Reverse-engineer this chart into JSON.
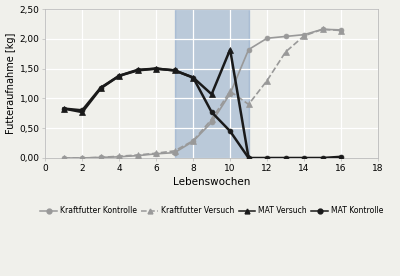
{
  "xlabel": "Lebenswochen",
  "ylabel": "Futteraufnahme [kg]",
  "ylim": [
    0.0,
    2.5
  ],
  "xlim": [
    0,
    18
  ],
  "yticks": [
    0.0,
    0.5,
    1.0,
    1.5,
    2.0,
    2.5
  ],
  "xticks": [
    0,
    2,
    4,
    6,
    8,
    10,
    12,
    14,
    16,
    18
  ],
  "ytick_labels": [
    "0,00",
    "0,50",
    "1,00",
    "1,50",
    "2,00",
    "2,50"
  ],
  "shade_xmin": 7,
  "shade_xmax": 11,
  "shade_color": "#6b8fbf",
  "shade_alpha": 0.4,
  "background_color": "#f0f0eb",
  "grid_color": "#ffffff",
  "series": [
    {
      "label": "Kraftfutter Kontrolle",
      "color": "#999999",
      "marker": "o",
      "markersize": 3.5,
      "linewidth": 1.2,
      "linestyle": "-",
      "x": [
        1,
        2,
        3,
        4,
        5,
        6,
        7,
        8,
        9,
        10,
        11,
        12,
        13,
        14,
        15,
        16
      ],
      "y": [
        0.0,
        0.0,
        0.01,
        0.02,
        0.04,
        0.07,
        0.09,
        0.28,
        0.6,
        1.08,
        1.82,
        2.01,
        2.04,
        2.07,
        2.16,
        2.15
      ]
    },
    {
      "label": "Kraftfutter Versuch",
      "color": "#999999",
      "marker": "^",
      "markersize": 4.5,
      "linewidth": 1.2,
      "linestyle": "--",
      "x": [
        1,
        2,
        3,
        4,
        5,
        6,
        7,
        8,
        9,
        10,
        11,
        12,
        13,
        14,
        15,
        16
      ],
      "y": [
        0.0,
        0.0,
        0.01,
        0.03,
        0.05,
        0.08,
        0.12,
        0.29,
        0.65,
        1.12,
        0.9,
        1.3,
        1.78,
        2.05,
        2.16,
        2.14
      ]
    },
    {
      "label": "MAT Versuch",
      "color": "#1a1a1a",
      "marker": "^",
      "markersize": 5,
      "linewidth": 1.8,
      "linestyle": "-",
      "x": [
        1,
        2,
        3,
        4,
        5,
        6,
        7,
        8,
        9,
        10,
        11
      ],
      "y": [
        0.83,
        0.77,
        1.17,
        1.38,
        1.48,
        1.5,
        1.47,
        1.35,
        1.07,
        1.82,
        0.0
      ]
    },
    {
      "label": "MAT Kontrolle",
      "color": "#1a1a1a",
      "marker": "o",
      "markersize": 3.5,
      "linewidth": 1.8,
      "linestyle": "-",
      "x": [
        1,
        2,
        3,
        4,
        5,
        6,
        7,
        8,
        9,
        10,
        11,
        12,
        13,
        14,
        15,
        16
      ],
      "y": [
        0.83,
        0.8,
        1.18,
        1.38,
        1.47,
        1.5,
        1.47,
        1.35,
        0.77,
        0.45,
        0.0,
        0.0,
        0.0,
        0.0,
        0.0,
        0.02
      ]
    }
  ]
}
